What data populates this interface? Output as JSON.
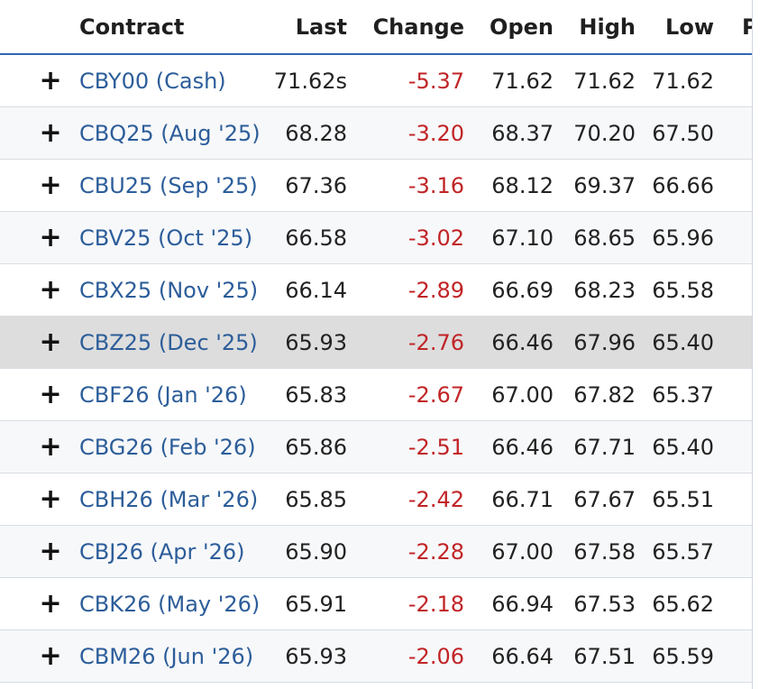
{
  "table": {
    "headers": {
      "contract": "Contract",
      "last": "Last",
      "change": "Change",
      "open": "Open",
      "high": "High",
      "low": "Low",
      "partial_next": "P"
    },
    "plus_icon": "+",
    "rows": [
      {
        "contract": "CBY00 (Cash)",
        "last": "71.62s",
        "change": "-5.37",
        "open": "71.62",
        "high": "71.62",
        "low": "71.62"
      },
      {
        "contract": "CBQ25 (Aug '25)",
        "last": "68.28",
        "change": "-3.20",
        "open": "68.37",
        "high": "70.20",
        "low": "67.50"
      },
      {
        "contract": "CBU25 (Sep '25)",
        "last": "67.36",
        "change": "-3.16",
        "open": "68.12",
        "high": "69.37",
        "low": "66.66"
      },
      {
        "contract": "CBV25 (Oct '25)",
        "last": "66.58",
        "change": "-3.02",
        "open": "67.10",
        "high": "68.65",
        "low": "65.96"
      },
      {
        "contract": "CBX25 (Nov '25)",
        "last": "66.14",
        "change": "-2.89",
        "open": "66.69",
        "high": "68.23",
        "low": "65.58"
      },
      {
        "contract": "CBZ25 (Dec '25)",
        "last": "65.93",
        "change": "-2.76",
        "open": "66.46",
        "high": "67.96",
        "low": "65.40"
      },
      {
        "contract": "CBF26 (Jan '26)",
        "last": "65.83",
        "change": "-2.67",
        "open": "67.00",
        "high": "67.82",
        "low": "65.37"
      },
      {
        "contract": "CBG26 (Feb '26)",
        "last": "65.86",
        "change": "-2.51",
        "open": "66.46",
        "high": "67.71",
        "low": "65.40"
      },
      {
        "contract": "CBH26 (Mar '26)",
        "last": "65.85",
        "change": "-2.42",
        "open": "66.71",
        "high": "67.67",
        "low": "65.51"
      },
      {
        "contract": "CBJ26 (Apr '26)",
        "last": "65.90",
        "change": "-2.28",
        "open": "67.00",
        "high": "67.58",
        "low": "65.57"
      },
      {
        "contract": "CBK26 (May '26)",
        "last": "65.91",
        "change": "-2.18",
        "open": "66.94",
        "high": "67.53",
        "low": "65.62"
      },
      {
        "contract": "CBM26 (Jun '26)",
        "last": "65.93",
        "change": "-2.06",
        "open": "66.64",
        "high": "67.51",
        "low": "65.59"
      }
    ]
  },
  "colors": {
    "link": "#2c5d99",
    "negative": "#c12426",
    "header_rule": "#2f67b1",
    "highlight_row": "#dddddd"
  },
  "highlighted_row_index": 5
}
